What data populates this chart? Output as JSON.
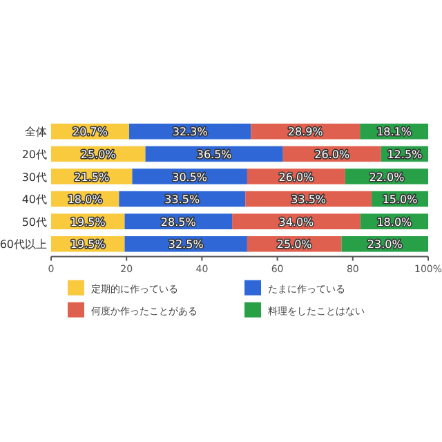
{
  "chart_data": {
    "type": "bar",
    "orientation": "horizontal",
    "stacked": true,
    "categories": [
      "全体",
      "20代",
      "30代",
      "40代",
      "50代",
      "60代以上"
    ],
    "series": [
      {
        "name": "定期的に作っている",
        "color": "#f9c93e",
        "values": [
          20.7,
          25.0,
          21.5,
          18.0,
          19.5,
          19.5
        ],
        "value_labels": [
          "20.7%",
          "25.0%",
          "21.5%",
          "18.0%",
          "19.5%",
          "19.5%"
        ]
      },
      {
        "name": "たまに作っている",
        "color": "#2f68d6",
        "values": [
          32.3,
          36.5,
          30.5,
          33.5,
          28.5,
          32.5
        ],
        "value_labels": [
          "32.3%",
          "36.5%",
          "30.5%",
          "33.5%",
          "28.5%",
          "32.5%"
        ]
      },
      {
        "name": "何度か作ったことがある",
        "color": "#e0604f",
        "values": [
          28.9,
          26.0,
          26.0,
          33.5,
          34.0,
          25.0
        ],
        "value_labels": [
          "28.9%",
          "26.0%",
          "26.0%",
          "33.5%",
          "34.0%",
          "25.0%"
        ]
      },
      {
        "name": "料理をしたことはない",
        "color": "#27a048",
        "values": [
          18.1,
          12.5,
          22.0,
          15.0,
          18.0,
          23.0
        ],
        "value_labels": [
          "18.1%",
          "12.5%",
          "22.0%",
          "15.0%",
          "18.0%",
          "23.0%"
        ]
      }
    ],
    "xlim": [
      0,
      100
    ],
    "xticks": [
      0,
      20,
      40,
      60,
      80,
      {
        "value": 100,
        "label": "100%"
      }
    ],
    "grid": false,
    "legend": "bottom"
  }
}
